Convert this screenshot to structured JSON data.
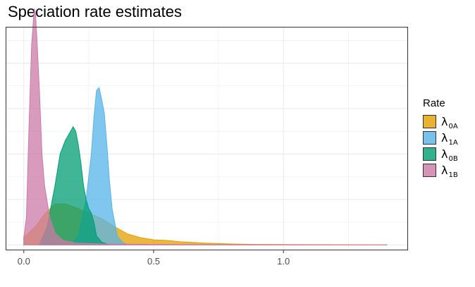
{
  "chart_data": {
    "type": "area",
    "title": "Speciation rate estimates",
    "xlabel": "",
    "ylabel": "",
    "xlim": [
      -0.07,
      1.48
    ],
    "ylim": [
      -0.6,
      24
    ],
    "x_ticks": [
      "0.0",
      "0.5",
      "1.0"
    ],
    "x_tick_values": [
      0,
      0.5,
      1.0
    ],
    "grid": true,
    "legend": {
      "title": "Rate",
      "position": "right"
    },
    "series": [
      {
        "name": "λ0A",
        "symbol": "λ",
        "subscript": "0A",
        "color": "#E69F00",
        "x": [
          0.0,
          0.05,
          0.08,
          0.12,
          0.16,
          0.2,
          0.25,
          0.3,
          0.35,
          0.4,
          0.45,
          0.5,
          0.55,
          0.6,
          0.7,
          0.8,
          0.9,
          1.0,
          1.2,
          1.4
        ],
        "y": [
          0.8,
          2.2,
          3.4,
          4.5,
          4.5,
          4.1,
          3.5,
          2.9,
          2.0,
          1.2,
          0.8,
          0.55,
          0.5,
          0.35,
          0.2,
          0.1,
          0.05,
          0.04,
          0.02,
          0.0
        ]
      },
      {
        "name": "λ1A",
        "symbol": "λ",
        "subscript": "1A",
        "color": "#56B4E9",
        "x": [
          0.18,
          0.21,
          0.24,
          0.26,
          0.27,
          0.28,
          0.29,
          0.3,
          0.31,
          0.32,
          0.33,
          0.34,
          0.35,
          0.36,
          0.38,
          0.4
        ],
        "y": [
          0.0,
          1.0,
          5.0,
          10.0,
          14.0,
          17.0,
          17.3,
          16.0,
          14.5,
          11.0,
          7.0,
          4.0,
          2.5,
          1.0,
          0.3,
          0.0
        ]
      },
      {
        "name": "λ0B",
        "symbol": "λ",
        "subscript": "0B",
        "color": "#009E73",
        "x": [
          0.06,
          0.09,
          0.12,
          0.14,
          0.16,
          0.18,
          0.19,
          0.2,
          0.21,
          0.22,
          0.23,
          0.24,
          0.25,
          0.26,
          0.27,
          0.28,
          0.3,
          0.33
        ],
        "y": [
          0.0,
          2.0,
          6.5,
          10.0,
          11.5,
          12.5,
          13.0,
          12.5,
          11.0,
          9.0,
          6.5,
          5.0,
          4.0,
          3.5,
          2.5,
          1.0,
          0.3,
          0.0
        ]
      },
      {
        "name": "λ1B",
        "symbol": "λ",
        "subscript": "1B",
        "color": "#CC79A7",
        "x": [
          0.0,
          0.01,
          0.02,
          0.03,
          0.035,
          0.04,
          0.045,
          0.05,
          0.06,
          0.07,
          0.08,
          0.1,
          0.12,
          0.15,
          0.2,
          0.3,
          0.5,
          0.8,
          1.1,
          1.4
        ],
        "y": [
          0.8,
          3.0,
          13.0,
          22.0,
          24.0,
          26.0,
          25.5,
          23.0,
          17.0,
          10.0,
          6.5,
          3.0,
          1.3,
          0.5,
          0.2,
          0.1,
          0.05,
          0.03,
          0.01,
          0.0
        ]
      }
    ]
  }
}
